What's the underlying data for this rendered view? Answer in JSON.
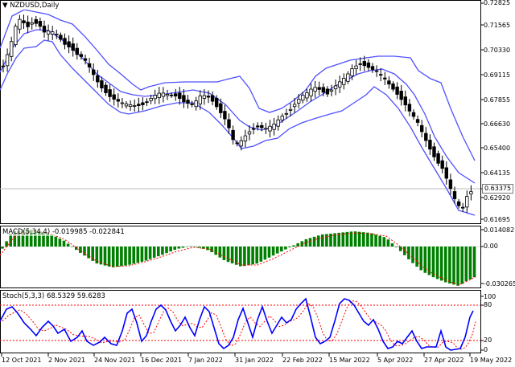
{
  "header": {
    "symbol_label": "NZDUSD,Daily"
  },
  "price_axis": {
    "labels": [
      "0.72825",
      "0.71565",
      "0.70330",
      "0.69115",
      "0.67855",
      "0.66630",
      "0.65400",
      "0.64135",
      "0.63375",
      "0.62920",
      "0.61695"
    ],
    "current": "0.63375"
  },
  "macd": {
    "title": "MACD(5,34,4) -0.019985 -0.022841",
    "axis_labels": [
      "0.014082",
      "0.00",
      "-0.030265"
    ]
  },
  "stoch": {
    "title": "Stoch(5,3,3) 68.5329 59.6283",
    "axis_labels": [
      "100",
      "80",
      "20",
      "0"
    ]
  },
  "time_axis": [
    "12 Oct 2021",
    "2 Nov 2021",
    "24 Nov 2021",
    "16 Dec 2021",
    "7 Jan 2022",
    "31 Jan 2022",
    "22 Feb 2022",
    "15 Mar 2022",
    "5 Apr 2022",
    "27 Apr 2022",
    "19 May 2022"
  ],
  "colors": {
    "bands": "#5050ff",
    "macd_hist": "#008000",
    "signal": "#ff0000",
    "stoch": "#0000ff",
    "level": "#ff0000",
    "grid": "#000000"
  }
}
